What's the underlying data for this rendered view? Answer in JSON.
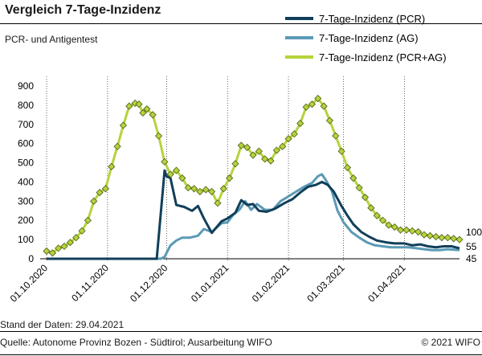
{
  "header": {
    "title": "Vergleich 7-Tage-Inzidenz",
    "subtitle": "PCR- und Antigentest"
  },
  "footer": {
    "stand": "Stand der Daten: 29.04.2021",
    "source": "Quelle: Autonome Provinz Bozen - Südtirol; Ausarbeitung WIFO",
    "copyright": "© 2021 WIFO"
  },
  "colors": {
    "pcr": "#113f5a",
    "ag": "#5b9ab5",
    "pcr_ag": "#b5d33d",
    "marker_fill": "#b5d33d",
    "marker_stroke": "#4a5a16",
    "grid": "#000000"
  },
  "chart_data": {
    "type": "line",
    "title": "Vergleich 7-Tage-Inzidenz",
    "subtitle": "PCR- und Antigentest",
    "xlabel": "",
    "ylabel": "",
    "ylim": [
      0,
      900
    ],
    "yticks": [
      0,
      100,
      200,
      300,
      400,
      500,
      600,
      700,
      800,
      900
    ],
    "x_start": "2020-10-01",
    "x_end": "2021-04-29",
    "xtick_labels": [
      "01.10.2020",
      "01.11.2020",
      "01.12.2020",
      "01.01.2021",
      "01.02.2021",
      "01.03.2021",
      "01.04.2021"
    ],
    "xtick_dates": [
      "2020-10-01",
      "2020-11-01",
      "2020-12-01",
      "2021-01-01",
      "2021-02-01",
      "2021-03-01",
      "2021-04-01"
    ],
    "grid": "vertical lines at month starts",
    "legend_position": "top-right",
    "markers_on": "7-Tage-Inzidenz (PCR+AG)",
    "end_labels": [
      {
        "text": "100",
        "series": "7-Tage-Inzidenz (PCR+AG)",
        "value": 100
      },
      {
        "text": "55",
        "series": "7-Tage-Inzidenz (PCR)",
        "value": 55
      },
      {
        "text": "45",
        "series": "7-Tage-Inzidenz (AG)",
        "value": 45
      }
    ],
    "series": [
      {
        "name": "7-Tage-Inzidenz (PCR)",
        "points": [
          [
            "2020-10-01",
            0
          ],
          [
            "2020-11-01",
            0
          ],
          [
            "2020-11-26",
            0
          ],
          [
            "2020-11-30",
            460
          ],
          [
            "2020-12-01",
            430
          ],
          [
            "2020-12-03",
            420
          ],
          [
            "2020-12-06",
            280
          ],
          [
            "2020-12-10",
            270
          ],
          [
            "2020-12-14",
            250
          ],
          [
            "2020-12-17",
            275
          ],
          [
            "2020-12-20",
            210
          ],
          [
            "2020-12-24",
            135
          ],
          [
            "2020-12-29",
            195
          ],
          [
            "2021-01-01",
            210
          ],
          [
            "2021-01-05",
            240
          ],
          [
            "2021-01-08",
            305
          ],
          [
            "2021-01-11",
            280
          ],
          [
            "2021-01-14",
            285
          ],
          [
            "2021-01-17",
            250
          ],
          [
            "2021-01-21",
            245
          ],
          [
            "2021-01-25",
            260
          ],
          [
            "2021-01-30",
            290
          ],
          [
            "2021-02-03",
            310
          ],
          [
            "2021-02-07",
            345
          ],
          [
            "2021-02-11",
            375
          ],
          [
            "2021-02-15",
            385
          ],
          [
            "2021-02-18",
            400
          ],
          [
            "2021-02-21",
            385
          ],
          [
            "2021-02-24",
            350
          ],
          [
            "2021-02-28",
            275
          ],
          [
            "2021-03-03",
            225
          ],
          [
            "2021-03-06",
            180
          ],
          [
            "2021-03-10",
            140
          ],
          [
            "2021-03-14",
            115
          ],
          [
            "2021-03-18",
            95
          ],
          [
            "2021-03-23",
            85
          ],
          [
            "2021-03-27",
            80
          ],
          [
            "2021-04-01",
            80
          ],
          [
            "2021-04-05",
            70
          ],
          [
            "2021-04-09",
            75
          ],
          [
            "2021-04-13",
            65
          ],
          [
            "2021-04-17",
            60
          ],
          [
            "2021-04-21",
            65
          ],
          [
            "2021-04-25",
            65
          ],
          [
            "2021-04-29",
            55
          ]
        ]
      },
      {
        "name": "7-Tage-Inzidenz (AG)",
        "points": [
          [
            "2020-10-01",
            0
          ],
          [
            "2020-11-01",
            0
          ],
          [
            "2020-11-28",
            0
          ],
          [
            "2020-11-30",
            10
          ],
          [
            "2020-12-03",
            70
          ],
          [
            "2020-12-06",
            95
          ],
          [
            "2020-12-09",
            110
          ],
          [
            "2020-12-13",
            110
          ],
          [
            "2020-12-17",
            120
          ],
          [
            "2020-12-20",
            155
          ],
          [
            "2020-12-24",
            140
          ],
          [
            "2020-12-29",
            185
          ],
          [
            "2021-01-01",
            190
          ],
          [
            "2021-01-04",
            230
          ],
          [
            "2021-01-07",
            255
          ],
          [
            "2021-01-10",
            300
          ],
          [
            "2021-01-13",
            255
          ],
          [
            "2021-01-16",
            285
          ],
          [
            "2021-01-20",
            255
          ],
          [
            "2021-01-24",
            255
          ],
          [
            "2021-01-28",
            300
          ],
          [
            "2021-02-01",
            325
          ],
          [
            "2021-02-05",
            350
          ],
          [
            "2021-02-09",
            375
          ],
          [
            "2021-02-13",
            395
          ],
          [
            "2021-02-16",
            430
          ],
          [
            "2021-02-18",
            440
          ],
          [
            "2021-02-20",
            410
          ],
          [
            "2021-02-23",
            355
          ],
          [
            "2021-02-26",
            250
          ],
          [
            "2021-03-01",
            190
          ],
          [
            "2021-03-05",
            140
          ],
          [
            "2021-03-09",
            110
          ],
          [
            "2021-03-13",
            85
          ],
          [
            "2021-03-17",
            70
          ],
          [
            "2021-03-21",
            65
          ],
          [
            "2021-03-25",
            60
          ],
          [
            "2021-03-30",
            60
          ],
          [
            "2021-04-03",
            60
          ],
          [
            "2021-04-07",
            55
          ],
          [
            "2021-04-11",
            50
          ],
          [
            "2021-04-15",
            45
          ],
          [
            "2021-04-19",
            45
          ],
          [
            "2021-04-23",
            50
          ],
          [
            "2021-04-29",
            45
          ]
        ]
      },
      {
        "name": "7-Tage-Inzidenz (PCR+AG)",
        "points": [
          [
            "2020-10-01",
            40
          ],
          [
            "2020-10-04",
            30
          ],
          [
            "2020-10-07",
            55
          ],
          [
            "2020-10-10",
            65
          ],
          [
            "2020-10-13",
            85
          ],
          [
            "2020-10-16",
            110
          ],
          [
            "2020-10-19",
            145
          ],
          [
            "2020-10-22",
            200
          ],
          [
            "2020-10-25",
            300
          ],
          [
            "2020-10-28",
            345
          ],
          [
            "2020-10-31",
            365
          ],
          [
            "2020-11-03",
            480
          ],
          [
            "2020-11-06",
            585
          ],
          [
            "2020-11-09",
            695
          ],
          [
            "2020-11-12",
            795
          ],
          [
            "2020-11-15",
            810
          ],
          [
            "2020-11-17",
            805
          ],
          [
            "2020-11-19",
            760
          ],
          [
            "2020-11-21",
            780
          ],
          [
            "2020-11-24",
            750
          ],
          [
            "2020-11-27",
            640
          ],
          [
            "2020-11-30",
            505
          ],
          [
            "2020-12-03",
            440
          ],
          [
            "2020-12-06",
            460
          ],
          [
            "2020-12-09",
            420
          ],
          [
            "2020-12-12",
            370
          ],
          [
            "2020-12-15",
            365
          ],
          [
            "2020-12-18",
            350
          ],
          [
            "2020-12-21",
            360
          ],
          [
            "2020-12-24",
            350
          ],
          [
            "2020-12-27",
            290
          ],
          [
            "2020-12-30",
            365
          ],
          [
            "2021-01-02",
            420
          ],
          [
            "2021-01-05",
            495
          ],
          [
            "2021-01-08",
            590
          ],
          [
            "2021-01-11",
            580
          ],
          [
            "2021-01-14",
            540
          ],
          [
            "2021-01-17",
            560
          ],
          [
            "2021-01-20",
            520
          ],
          [
            "2021-01-23",
            510
          ],
          [
            "2021-01-26",
            565
          ],
          [
            "2021-01-29",
            585
          ],
          [
            "2021-02-01",
            625
          ],
          [
            "2021-02-04",
            650
          ],
          [
            "2021-02-07",
            705
          ],
          [
            "2021-02-10",
            790
          ],
          [
            "2021-02-13",
            805
          ],
          [
            "2021-02-16",
            835
          ],
          [
            "2021-02-19",
            795
          ],
          [
            "2021-02-22",
            720
          ],
          [
            "2021-02-25",
            640
          ],
          [
            "2021-02-28",
            560
          ],
          [
            "2021-03-03",
            475
          ],
          [
            "2021-03-06",
            420
          ],
          [
            "2021-03-09",
            370
          ],
          [
            "2021-03-12",
            320
          ],
          [
            "2021-03-15",
            265
          ],
          [
            "2021-03-18",
            225
          ],
          [
            "2021-03-21",
            200
          ],
          [
            "2021-03-24",
            175
          ],
          [
            "2021-03-27",
            165
          ],
          [
            "2021-03-30",
            150
          ],
          [
            "2021-04-02",
            150
          ],
          [
            "2021-04-05",
            145
          ],
          [
            "2021-04-08",
            140
          ],
          [
            "2021-04-11",
            125
          ],
          [
            "2021-04-14",
            120
          ],
          [
            "2021-04-17",
            115
          ],
          [
            "2021-04-20",
            110
          ],
          [
            "2021-04-23",
            110
          ],
          [
            "2021-04-26",
            105
          ],
          [
            "2021-04-29",
            100
          ]
        ]
      }
    ]
  }
}
